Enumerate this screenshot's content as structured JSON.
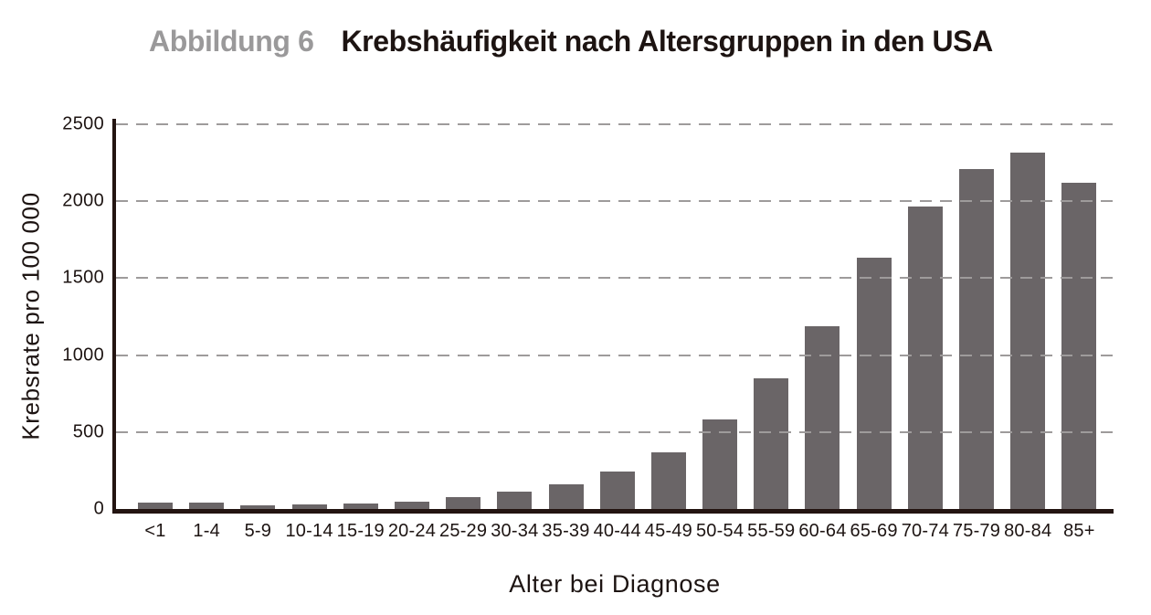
{
  "figure": {
    "label": "Abbildung 6",
    "title": "Krebshäufigkeit nach Altersgruppen in den USA"
  },
  "chart_data": {
    "type": "bar",
    "figure_label": "Abbildung 6",
    "title": "Krebshäufigkeit nach Altersgruppen in den USA",
    "xlabel": "Alter bei Diagnose",
    "ylabel": "Krebsrate pro 100 000",
    "categories": [
      "<1",
      "1-4",
      "5-9",
      "10-14",
      "15-19",
      "20-24",
      "25-29",
      "30-34",
      "35-39",
      "40-44",
      "45-49",
      "50-54",
      "55-59",
      "60-64",
      "65-69",
      "70-74",
      "75-79",
      "80-84",
      "85+"
    ],
    "values": [
      40,
      40,
      25,
      30,
      35,
      50,
      75,
      110,
      160,
      245,
      370,
      585,
      850,
      1190,
      1635,
      1965,
      2210,
      2315,
      2120
    ],
    "ylim": [
      0,
      2500
    ],
    "yticks": [
      0,
      500,
      1000,
      1500,
      2000,
      2500
    ],
    "grid": "horizontal-dashed",
    "gridlines_over_bars": true,
    "legend": "none",
    "colors": {
      "bar": "#6a6567",
      "axis": "#231411",
      "gridline": "#9e9b9b",
      "figure_label": "#9a999a",
      "text": "#1d1412"
    }
  }
}
